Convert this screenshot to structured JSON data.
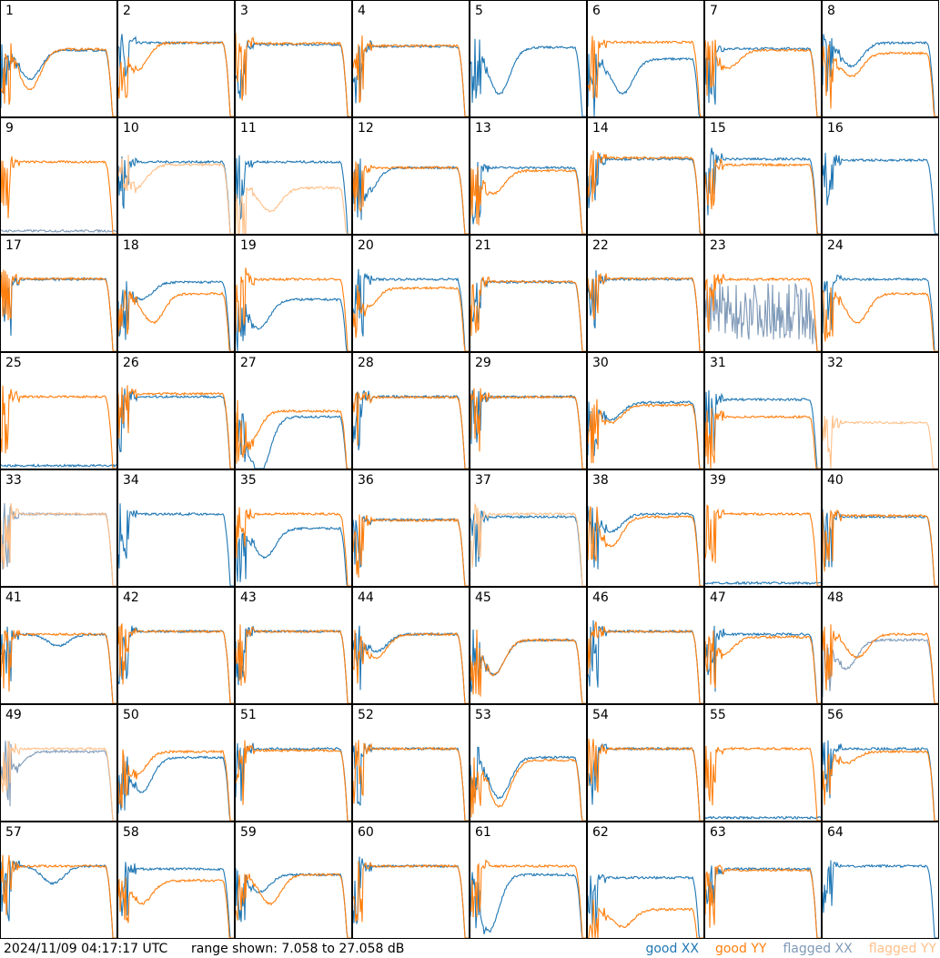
{
  "footer": {
    "timestamp": "2024/11/09 04:17:17 UTC",
    "range": "range shown: 7.058 to 27.058 dB"
  },
  "legend": [
    {
      "label": "good XX",
      "color": "#1f77b4"
    },
    {
      "label": "good YY",
      "color": "#ff7f0e"
    },
    {
      "label": "flagged XX",
      "color": "#7f9ab8"
    },
    {
      "label": "flagged YY",
      "color": "#ffc08a"
    }
  ],
  "chart_data": {
    "type": "line",
    "ylim": [
      7.058,
      27.058
    ],
    "yunit": "dB",
    "grid": false,
    "panels": [
      {
        "n": "1",
        "xx": [
          "good",
          18.5,
          5,
          0.25
        ],
        "yy": [
          "good",
          18.7,
          7,
          0.25
        ]
      },
      {
        "n": "2",
        "xx": [
          "good",
          19.8,
          0,
          0
        ],
        "yy": [
          "good",
          19.8,
          5,
          0.15
        ]
      },
      {
        "n": "3",
        "xx": [
          "good",
          19.5,
          0,
          0
        ],
        "yy": [
          "good",
          19.7,
          0,
          0
        ]
      },
      {
        "n": "4",
        "xx": [
          "good",
          19.2,
          0,
          0
        ],
        "yy": [
          "good",
          19.3,
          0,
          0
        ]
      },
      {
        "n": "5",
        "xx": [
          "good",
          19,
          8,
          0.25
        ]
      },
      {
        "n": "6",
        "xx": [
          "good",
          17,
          6,
          0.3
        ],
        "yy": [
          "good",
          19.9,
          0,
          0
        ]
      },
      {
        "n": "7",
        "xx": [
          "good",
          18.8,
          0,
          0
        ],
        "yy": [
          "good",
          18.5,
          3,
          0.2
        ]
      },
      {
        "n": "8",
        "xx": [
          "good",
          19.8,
          4,
          0.25
        ],
        "yy": [
          "good",
          18,
          4,
          0.25
        ]
      },
      {
        "n": "9",
        "xx": [
          "flagged",
          7.3,
          0,
          0
        ],
        "yy": [
          "good",
          19.5,
          0,
          0
        ]
      },
      {
        "n": "10",
        "xx": [
          "good",
          19.5,
          0,
          0
        ],
        "yy": [
          "flagged",
          19,
          4,
          0.15
        ]
      },
      {
        "n": "11",
        "xx": [
          "good",
          19.5,
          0,
          0
        ],
        "yy": [
          "flagged",
          15,
          4,
          0.3
        ]
      },
      {
        "n": "12",
        "xx": [
          "good",
          18.5,
          5,
          0.1
        ],
        "yy": [
          "good",
          18.5,
          0,
          0
        ]
      },
      {
        "n": "13",
        "xx": [
          "good",
          18.5,
          0,
          0
        ],
        "yy": [
          "good",
          18,
          4,
          0.2
        ]
      },
      {
        "n": "14",
        "xx": [
          "good",
          20,
          0,
          0
        ],
        "yy": [
          "good",
          20.2,
          0,
          0
        ]
      },
      {
        "n": "15",
        "xx": [
          "good",
          20,
          0,
          0
        ],
        "yy": [
          "good",
          19,
          0,
          0
        ]
      },
      {
        "n": "16",
        "xx": [
          "good",
          19.8,
          0,
          0
        ]
      },
      {
        "n": "17",
        "xx": [
          "good",
          19.5,
          0,
          0
        ],
        "yy": [
          "good",
          19.6,
          0,
          0
        ]
      },
      {
        "n": "18",
        "xx": [
          "good",
          19,
          3,
          0.2
        ],
        "yy": [
          "good",
          17,
          5,
          0.3
        ]
      },
      {
        "n": "19",
        "xx": [
          "good",
          16,
          5,
          0.2
        ],
        "yy": [
          "good",
          19.5,
          0,
          0
        ]
      },
      {
        "n": "20",
        "xx": [
          "good",
          19.5,
          0,
          0
        ],
        "yy": [
          "good",
          18,
          4,
          0.1
        ]
      },
      {
        "n": "21",
        "xx": [
          "good",
          19,
          0,
          0
        ],
        "yy": [
          "good",
          19.1,
          0,
          0
        ]
      },
      {
        "n": "22",
        "xx": [
          "good",
          19.5,
          0,
          0
        ],
        "yy": [
          "good",
          19.6,
          0,
          0
        ]
      },
      {
        "n": "23",
        "xx": [
          "flagged",
          12,
          0,
          0
        ],
        "yy": [
          "good",
          19.5,
          0,
          0
        ]
      },
      {
        "n": "24",
        "xx": [
          "good",
          19.5,
          0,
          0
        ],
        "yy": [
          "good",
          17,
          5,
          0.3
        ]
      },
      {
        "n": "25",
        "xx": [
          "good",
          7.2,
          0,
          0
        ],
        "yy": [
          "good",
          19.5,
          0,
          0
        ]
      },
      {
        "n": "26",
        "xx": [
          "good",
          19.5,
          0,
          0
        ],
        "yy": [
          "good",
          20,
          0,
          0
        ]
      },
      {
        "n": "27",
        "xx": [
          "good",
          16,
          10,
          0.2
        ],
        "yy": [
          "good",
          17,
          6,
          0.1
        ]
      },
      {
        "n": "28",
        "xx": [
          "good",
          19.5,
          0,
          0
        ],
        "yy": [
          "good",
          19.4,
          0,
          0
        ]
      },
      {
        "n": "29",
        "xx": [
          "good",
          19.5,
          0,
          0
        ],
        "yy": [
          "good",
          19.4,
          0,
          0
        ]
      },
      {
        "n": "30",
        "xx": [
          "good",
          18.5,
          3,
          0.2
        ],
        "yy": [
          "good",
          18,
          3,
          0.2
        ]
      },
      {
        "n": "31",
        "xx": [
          "good",
          19,
          0,
          0
        ],
        "yy": [
          "good",
          16,
          0,
          0
        ]
      },
      {
        "n": "32",
        "yy": [
          "flagged",
          15,
          0,
          0
        ]
      },
      {
        "n": "33",
        "xx": [
          "flagged",
          19.5,
          0,
          0
        ],
        "yy": [
          "flagged",
          19.5,
          0,
          0
        ]
      },
      {
        "n": "34",
        "xx": [
          "good",
          19.5,
          0,
          0
        ]
      },
      {
        "n": "35",
        "xx": [
          "good",
          17,
          5,
          0.25
        ],
        "yy": [
          "good",
          19.5,
          0,
          0
        ]
      },
      {
        "n": "36",
        "xx": [
          "good",
          18.5,
          0,
          0
        ],
        "yy": [
          "good",
          18.4,
          0,
          0
        ]
      },
      {
        "n": "37",
        "xx": [
          "good",
          19,
          0,
          0
        ],
        "yy": [
          "flagged",
          19.5,
          0,
          0
        ]
      },
      {
        "n": "38",
        "xx": [
          "good",
          19.5,
          3,
          0.2
        ],
        "yy": [
          "good",
          19,
          5,
          0.2
        ]
      },
      {
        "n": "39",
        "xx": [
          "good",
          7.2,
          0,
          0
        ],
        "yy": [
          "good",
          19.5,
          0,
          0
        ]
      },
      {
        "n": "40",
        "xx": [
          "good",
          19,
          0,
          0
        ],
        "yy": [
          "good",
          19.2,
          0,
          0
        ]
      },
      {
        "n": "41",
        "xx": [
          "good",
          19,
          2,
          0.5
        ],
        "yy": [
          "good",
          19,
          0,
          0
        ]
      },
      {
        "n": "42",
        "xx": [
          "good",
          19.5,
          0,
          0
        ],
        "yy": [
          "good",
          19.5,
          0,
          0
        ]
      },
      {
        "n": "43",
        "xx": [
          "good",
          19.5,
          0,
          0
        ],
        "yy": [
          "good",
          19.5,
          0,
          0
        ]
      },
      {
        "n": "44",
        "xx": [
          "good",
          19,
          3,
          0.2
        ],
        "yy": [
          "good",
          19,
          4,
          0.2
        ]
      },
      {
        "n": "45",
        "xx": [
          "good",
          18,
          6,
          0.2
        ],
        "yy": [
          "good",
          18,
          6,
          0.2
        ]
      },
      {
        "n": "46",
        "xx": [
          "good",
          19.5,
          0,
          0
        ],
        "yy": [
          "good",
          19.5,
          0,
          0
        ]
      },
      {
        "n": "47",
        "xx": [
          "good",
          19,
          0,
          0
        ],
        "yy": [
          "good",
          18.5,
          3,
          0.15
        ]
      },
      {
        "n": "48",
        "xx": [
          "flagged",
          18,
          5,
          0.2
        ],
        "yy": [
          "good",
          19,
          4,
          0.3
        ]
      },
      {
        "n": "49",
        "xx": [
          "flagged",
          19,
          3,
          0.1
        ],
        "yy": [
          "flagged",
          19.5,
          0,
          0
        ]
      },
      {
        "n": "50",
        "xx": [
          "good",
          18,
          6,
          0.2
        ],
        "yy": [
          "good",
          19,
          4,
          0.15
        ]
      },
      {
        "n": "51",
        "xx": [
          "good",
          19.5,
          0,
          0
        ],
        "yy": [
          "good",
          19.2,
          0,
          0
        ]
      },
      {
        "n": "52",
        "xx": [
          "good",
          19.5,
          0,
          0
        ],
        "yy": [
          "good",
          19.5,
          0,
          0
        ]
      },
      {
        "n": "53",
        "xx": [
          "good",
          18,
          7,
          0.25
        ],
        "yy": [
          "good",
          17.5,
          8,
          0.25
        ]
      },
      {
        "n": "54",
        "xx": [
          "good",
          19.5,
          0,
          0
        ],
        "yy": [
          "good",
          19.5,
          0,
          0
        ]
      },
      {
        "n": "55",
        "xx": [
          "good",
          7.2,
          0,
          0
        ],
        "yy": [
          "good",
          19.5,
          0,
          0
        ]
      },
      {
        "n": "56",
        "xx": [
          "good",
          19.5,
          0,
          0
        ],
        "yy": [
          "good",
          19,
          2,
          0.2
        ]
      },
      {
        "n": "57",
        "xx": [
          "good",
          19.5,
          3,
          0.45
        ],
        "yy": [
          "good",
          19.5,
          0,
          0
        ]
      },
      {
        "n": "58",
        "xx": [
          "good",
          19,
          0,
          0
        ],
        "yy": [
          "good",
          17,
          4,
          0.2
        ]
      },
      {
        "n": "59",
        "xx": [
          "good",
          18,
          3,
          0.2
        ],
        "yy": [
          "good",
          18,
          5,
          0.3
        ]
      },
      {
        "n": "60",
        "xx": [
          "good",
          19.5,
          0,
          0
        ],
        "yy": [
          "good",
          19.5,
          0,
          0
        ]
      },
      {
        "n": "61",
        "xx": [
          "good",
          18,
          10,
          0.15
        ],
        "yy": [
          "good",
          19.5,
          0,
          0
        ]
      },
      {
        "n": "62",
        "xx": [
          "good",
          17.5,
          0,
          0
        ],
        "yy": [
          "good",
          12,
          3,
          0.3
        ]
      },
      {
        "n": "63",
        "xx": [
          "good",
          19,
          0,
          0
        ],
        "yy": [
          "good",
          18.8,
          0,
          0
        ]
      },
      {
        "n": "64",
        "xx": [
          "good",
          19.5,
          0,
          0
        ]
      }
    ]
  }
}
